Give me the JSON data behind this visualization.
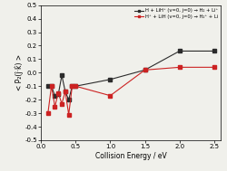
{
  "black_x": [
    0.1,
    0.15,
    0.2,
    0.25,
    0.3,
    0.35,
    0.4,
    0.45,
    0.5,
    1.0,
    1.5,
    2.0,
    2.5
  ],
  "black_y": [
    -0.1,
    -0.1,
    -0.17,
    -0.16,
    -0.02,
    -0.14,
    -0.2,
    -0.1,
    -0.1,
    -0.05,
    0.02,
    0.16,
    0.16
  ],
  "red_x": [
    0.1,
    0.15,
    0.2,
    0.25,
    0.3,
    0.35,
    0.4,
    0.45,
    0.5,
    1.0,
    1.5,
    2.0,
    2.5
  ],
  "red_y": [
    -0.3,
    -0.1,
    -0.25,
    -0.15,
    -0.23,
    -0.14,
    -0.31,
    -0.1,
    -0.1,
    -0.17,
    0.02,
    0.04,
    0.04
  ],
  "xlabel": "Collision Energy / eV",
  "ylabel": "< P₂(ĵ·k̂) >",
  "xlim": [
    0.0,
    2.6
  ],
  "ylim": [
    -0.5,
    0.5
  ],
  "xticks": [
    0.0,
    0.5,
    1.0,
    1.5,
    2.0,
    2.5
  ],
  "yticks": [
    -0.5,
    -0.4,
    -0.3,
    -0.2,
    -0.1,
    0.0,
    0.1,
    0.2,
    0.3,
    0.4,
    0.5
  ],
  "legend_black": "H + LiH⁺ (v=0, j=0) → H₂ + Li⁺",
  "legend_red": "H⁺ + LiH (v=0, j=0) → H₂⁺ + Li",
  "black_color": "#2b2b2b",
  "red_color": "#cc2222",
  "bg_color": "#f0f0eb"
}
